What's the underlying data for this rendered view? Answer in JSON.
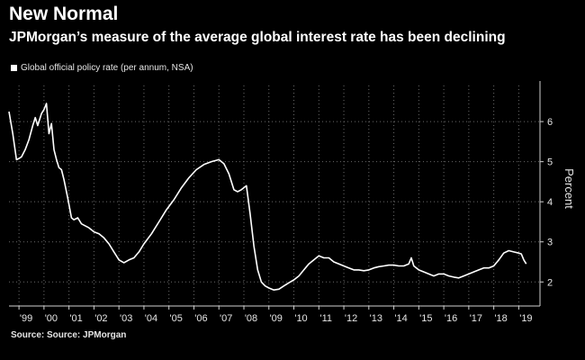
{
  "header": {
    "title": "New Normal",
    "subtitle": "JPMorgan’s measure of the average global interest rate has been declining"
  },
  "legend": {
    "label": "Global official policy rate (per annum, NSA)"
  },
  "source": "Source: Source: JPMorgan",
  "colors": {
    "background": "#000000",
    "line": "#ffffff",
    "grid": "#6a6a6a",
    "text": "#e6e6e6"
  },
  "chart_data": {
    "type": "line",
    "title": "New Normal",
    "subtitle": "JPMorgan’s measure of the average global interest rate has been declining",
    "xlabel": "",
    "ylabel": "Percent",
    "ylim": [
      1.4,
      6.9
    ],
    "xlim": [
      1998.6,
      2019.85
    ],
    "yticks": [
      2,
      3,
      4,
      5,
      6
    ],
    "ytick_labels": [
      "2",
      "3",
      "4",
      "5",
      "6"
    ],
    "xticks": [
      1999,
      2000,
      2001,
      2002,
      2003,
      2004,
      2005,
      2006,
      2007,
      2008,
      2009,
      2010,
      2011,
      2012,
      2013,
      2014,
      2015,
      2016,
      2017,
      2018,
      2019
    ],
    "xtick_labels": [
      "'99",
      "'00",
      "'01",
      "'02",
      "'03",
      "'04",
      "'05",
      "'06",
      "'07",
      "'08",
      "'09",
      "'10",
      "'11",
      "'12",
      "'13",
      "'14",
      "'15",
      "'16",
      "'17",
      "'18",
      "'19"
    ],
    "grid": "horizontal-dotted",
    "legend_position": "top-left",
    "series": [
      {
        "name": "Global official policy rate (per annum, NSA)",
        "x": [
          1998.6,
          1998.75,
          1998.9,
          1999.0,
          1999.1,
          1999.25,
          1999.4,
          1999.55,
          1999.65,
          1999.75,
          1999.9,
          2000.0,
          2000.1,
          2000.2,
          2000.3,
          2000.4,
          2000.5,
          2000.6,
          2000.7,
          2000.8,
          2000.95,
          2001.1,
          2001.2,
          2001.35,
          2001.5,
          2001.65,
          2001.8,
          2002.0,
          2002.2,
          2002.4,
          2002.6,
          2002.8,
          2003.0,
          2003.2,
          2003.4,
          2003.6,
          2003.8,
          2004.0,
          2004.3,
          2004.6,
          2004.9,
          2005.2,
          2005.5,
          2005.8,
          2006.1,
          2006.4,
          2006.7,
          2007.0,
          2007.2,
          2007.4,
          2007.5,
          2007.6,
          2007.75,
          2007.9,
          2008.1,
          2008.25,
          2008.4,
          2008.55,
          2008.7,
          2008.85,
          2009.0,
          2009.2,
          2009.4,
          2009.6,
          2009.8,
          2010.0,
          2010.2,
          2010.4,
          2010.6,
          2010.8,
          2011.0,
          2011.2,
          2011.4,
          2011.6,
          2011.8,
          2012.0,
          2012.2,
          2012.4,
          2012.6,
          2012.8,
          2013.0,
          2013.2,
          2013.4,
          2013.6,
          2013.8,
          2014.0,
          2014.2,
          2014.4,
          2014.6,
          2014.7,
          2014.8,
          2015.0,
          2015.2,
          2015.4,
          2015.6,
          2015.8,
          2016.0,
          2016.2,
          2016.4,
          2016.6,
          2016.8,
          2017.0,
          2017.2,
          2017.4,
          2017.6,
          2017.8,
          2018.0,
          2018.2,
          2018.4,
          2018.6,
          2018.8,
          2019.0,
          2019.1,
          2019.2,
          2019.3
        ],
        "values": [
          6.25,
          5.7,
          5.05,
          5.08,
          5.12,
          5.3,
          5.55,
          5.9,
          6.1,
          5.9,
          6.2,
          6.3,
          6.45,
          5.7,
          5.95,
          5.3,
          5.05,
          4.85,
          4.8,
          4.55,
          4.1,
          3.6,
          3.55,
          3.6,
          3.45,
          3.4,
          3.35,
          3.25,
          3.2,
          3.1,
          2.95,
          2.75,
          2.55,
          2.48,
          2.55,
          2.6,
          2.75,
          2.95,
          3.2,
          3.5,
          3.8,
          4.05,
          4.35,
          4.6,
          4.8,
          4.93,
          5.0,
          5.05,
          4.95,
          4.7,
          4.5,
          4.3,
          4.25,
          4.3,
          4.4,
          3.7,
          2.9,
          2.3,
          2.0,
          1.9,
          1.85,
          1.8,
          1.82,
          1.9,
          1.98,
          2.05,
          2.15,
          2.3,
          2.45,
          2.55,
          2.65,
          2.6,
          2.6,
          2.5,
          2.45,
          2.4,
          2.35,
          2.3,
          2.3,
          2.28,
          2.3,
          2.35,
          2.38,
          2.4,
          2.42,
          2.42,
          2.4,
          2.4,
          2.45,
          2.6,
          2.4,
          2.3,
          2.25,
          2.2,
          2.15,
          2.2,
          2.2,
          2.15,
          2.12,
          2.1,
          2.15,
          2.2,
          2.25,
          2.3,
          2.35,
          2.35,
          2.4,
          2.55,
          2.72,
          2.78,
          2.75,
          2.72,
          2.7,
          2.55,
          2.45
        ]
      }
    ]
  }
}
